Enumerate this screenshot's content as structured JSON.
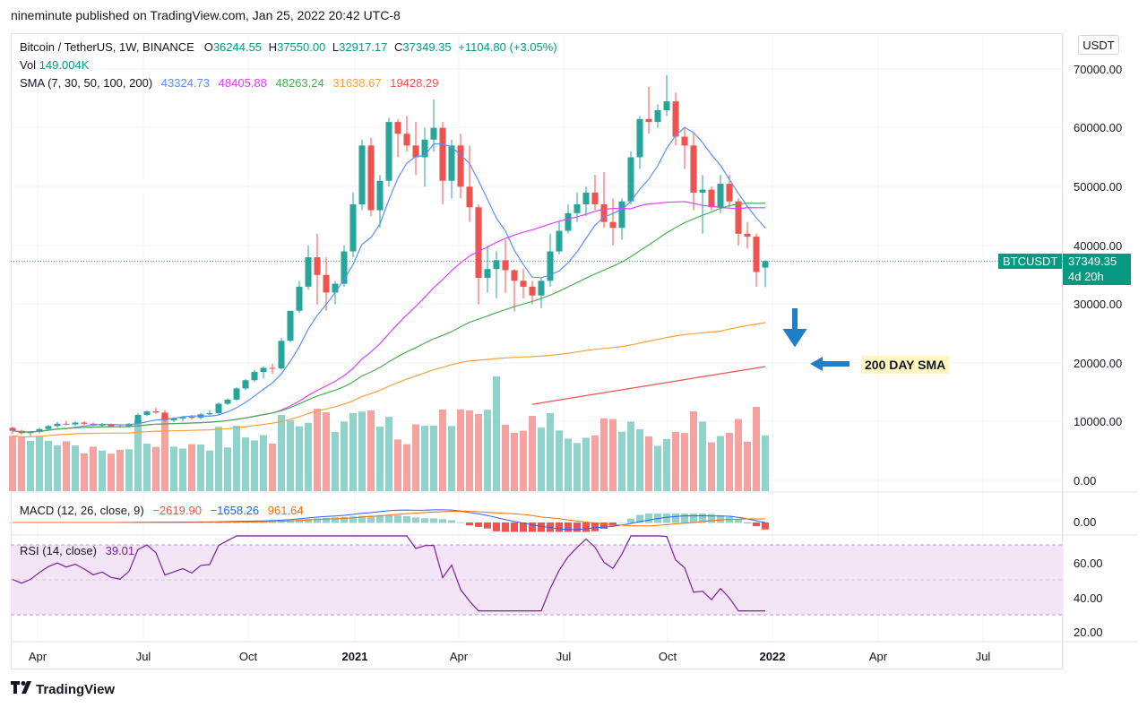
{
  "header": {
    "published": "nineminute published on TradingView.com, Jan 25, 2022 20:42 UTC-8"
  },
  "legend": {
    "symbol": "Bitcoin / TetherUS, 1W, BINANCE",
    "o_label": "O",
    "o": "36244.55",
    "h_label": "H",
    "h": "37550.00",
    "l_label": "L",
    "l": "32917.17",
    "c_label": "C",
    "c": "37349.35",
    "change": "+1104.80 (+3.05%)",
    "vol_label": "Vol",
    "vol": "149.004K",
    "sma_label": "SMA (7, 30, 50, 100, 200)",
    "sma": [
      "43324.73",
      "48405.88",
      "48263.24",
      "31638.67",
      "19428.29"
    ]
  },
  "macd": {
    "label": "MACD (12, 26, close, 9)",
    "values": [
      "−2619.90",
      "−1658.26",
      "961.64"
    ]
  },
  "rsi": {
    "label": "RSI (14, close)",
    "value": "39.01"
  },
  "currency_button": "USDT",
  "price_tag": {
    "symbol": "BTCUSDT",
    "price": "37349.35",
    "countdown": "4d 20h"
  },
  "annotation": "200 DAY SMA",
  "price_axis": [
    "70000.00",
    "60000.00",
    "50000.00",
    "40000.00",
    "30000.00",
    "20000.00",
    "10000.00",
    "0.00"
  ],
  "macd_axis": [
    "0.00"
  ],
  "rsi_axis": [
    "60.00",
    "40.00",
    "20.00"
  ],
  "time_axis": [
    "Apr",
    "Jul",
    "Oct",
    "2021",
    "Apr",
    "Jul",
    "Oct",
    "2022",
    "Apr",
    "Jul"
  ],
  "footer": "TradingView",
  "colors": {
    "up": "#26a69a",
    "down": "#ef5350",
    "sma7": "#5b8ff9",
    "sma30": "#e040fb",
    "sma50": "#4caf50",
    "sma100": "#f7a23b",
    "sma200": "#ef5350",
    "rsi": "#7b1fa2",
    "annotation_arrow": "#1e7fc8"
  },
  "chart_data": {
    "type": "candlestick",
    "interval": "1W",
    "ylim": [
      0,
      72000
    ],
    "candles": [
      [
        9000,
        9200,
        8000,
        8500
      ],
      [
        8500,
        8700,
        7800,
        8100
      ],
      [
        8100,
        8500,
        7600,
        8300
      ],
      [
        8300,
        9000,
        8100,
        8800
      ],
      [
        8800,
        9500,
        8600,
        9300
      ],
      [
        9300,
        10000,
        9100,
        9700
      ],
      [
        9700,
        10200,
        9400,
        9600
      ],
      [
        9600,
        10100,
        9300,
        9900
      ],
      [
        9900,
        10100,
        9500,
        9700
      ],
      [
        9700,
        9900,
        9300,
        9400
      ],
      [
        9400,
        9800,
        9200,
        9600
      ],
      [
        9600,
        9700,
        9100,
        9300
      ],
      [
        9300,
        9500,
        9000,
        9200
      ],
      [
        9200,
        9800,
        9100,
        9700
      ],
      [
        9700,
        11500,
        9600,
        11200
      ],
      [
        11200,
        12000,
        11000,
        11800
      ],
      [
        11800,
        12400,
        11400,
        11600
      ],
      [
        11600,
        12000,
        10000,
        10300
      ],
      [
        10300,
        10800,
        10000,
        10600
      ],
      [
        10600,
        11000,
        10100,
        10900
      ],
      [
        10900,
        11200,
        10400,
        10700
      ],
      [
        10700,
        11500,
        10500,
        11300
      ],
      [
        11300,
        12000,
        11100,
        11500
      ],
      [
        11500,
        13300,
        11300,
        13100
      ],
      [
        13100,
        14000,
        12900,
        13800
      ],
      [
        13800,
        15900,
        13600,
        15700
      ],
      [
        15700,
        17300,
        15400,
        17100
      ],
      [
        17100,
        18900,
        16800,
        18500
      ],
      [
        18500,
        19500,
        17400,
        19200
      ],
      [
        19200,
        19900,
        18200,
        19100
      ],
      [
        19100,
        24300,
        18900,
        23800
      ],
      [
        23800,
        28600,
        23500,
        28900
      ],
      [
        28900,
        34000,
        28500,
        33000
      ],
      [
        33000,
        40000,
        32500,
        38000
      ],
      [
        38000,
        42000,
        30000,
        35000
      ],
      [
        35000,
        38000,
        28900,
        32000
      ],
      [
        32000,
        34000,
        30000,
        33500
      ],
      [
        33500,
        40000,
        33000,
        39000
      ],
      [
        39000,
        49000,
        38000,
        47000
      ],
      [
        47000,
        58000,
        46000,
        57000
      ],
      [
        57000,
        58300,
        45000,
        46000
      ],
      [
        46000,
        52000,
        43000,
        51000
      ],
      [
        51000,
        61700,
        50000,
        61000
      ],
      [
        61000,
        61500,
        55000,
        59000
      ],
      [
        59000,
        62000,
        56000,
        57000
      ],
      [
        57000,
        61000,
        52000,
        55000
      ],
      [
        55000,
        60000,
        50000,
        58000
      ],
      [
        58000,
        64800,
        56000,
        60000
      ],
      [
        60000,
        61000,
        47000,
        51000
      ],
      [
        51000,
        58000,
        48000,
        57000
      ],
      [
        57000,
        59000,
        48000,
        50000
      ],
      [
        50000,
        57000,
        44000,
        46500
      ],
      [
        46500,
        47000,
        30000,
        34500
      ],
      [
        34500,
        40000,
        32000,
        36000
      ],
      [
        36000,
        39000,
        31000,
        37500
      ],
      [
        37500,
        41000,
        32000,
        35800
      ],
      [
        35800,
        36000,
        28800,
        34000
      ],
      [
        34000,
        36000,
        31000,
        33000
      ],
      [
        33000,
        34000,
        30000,
        31500
      ],
      [
        31500,
        34500,
        29300,
        34000
      ],
      [
        34000,
        42000,
        33000,
        39000
      ],
      [
        39000,
        44000,
        38500,
        42500
      ],
      [
        42500,
        47000,
        42000,
        45500
      ],
      [
        45500,
        49000,
        44000,
        47000
      ],
      [
        47000,
        50000,
        45000,
        49000
      ],
      [
        49000,
        52000,
        46000,
        47000
      ],
      [
        47000,
        52500,
        43000,
        44000
      ],
      [
        44000,
        48000,
        40000,
        43000
      ],
      [
        43000,
        48000,
        41000,
        47500
      ],
      [
        47500,
        56000,
        47000,
        55000
      ],
      [
        55000,
        62000,
        53000,
        61500
      ],
      [
        61500,
        67000,
        59000,
        61000
      ],
      [
        61000,
        64000,
        60000,
        63000
      ],
      [
        63000,
        69000,
        62000,
        64500
      ],
      [
        64500,
        66000,
        57000,
        58500
      ],
      [
        58500,
        60000,
        53000,
        57000
      ],
      [
        57000,
        59000,
        46000,
        49000
      ],
      [
        49000,
        52000,
        42000,
        49500
      ],
      [
        49500,
        50000,
        46000,
        46500
      ],
      [
        46500,
        52000,
        45500,
        50500
      ],
      [
        50500,
        52000,
        46500,
        47500
      ],
      [
        47500,
        48000,
        40000,
        42000
      ],
      [
        42000,
        44000,
        39500,
        41500
      ],
      [
        41500,
        42000,
        33000,
        35500
      ],
      [
        36244.55,
        37550,
        32917.17,
        37349.35
      ]
    ]
  }
}
